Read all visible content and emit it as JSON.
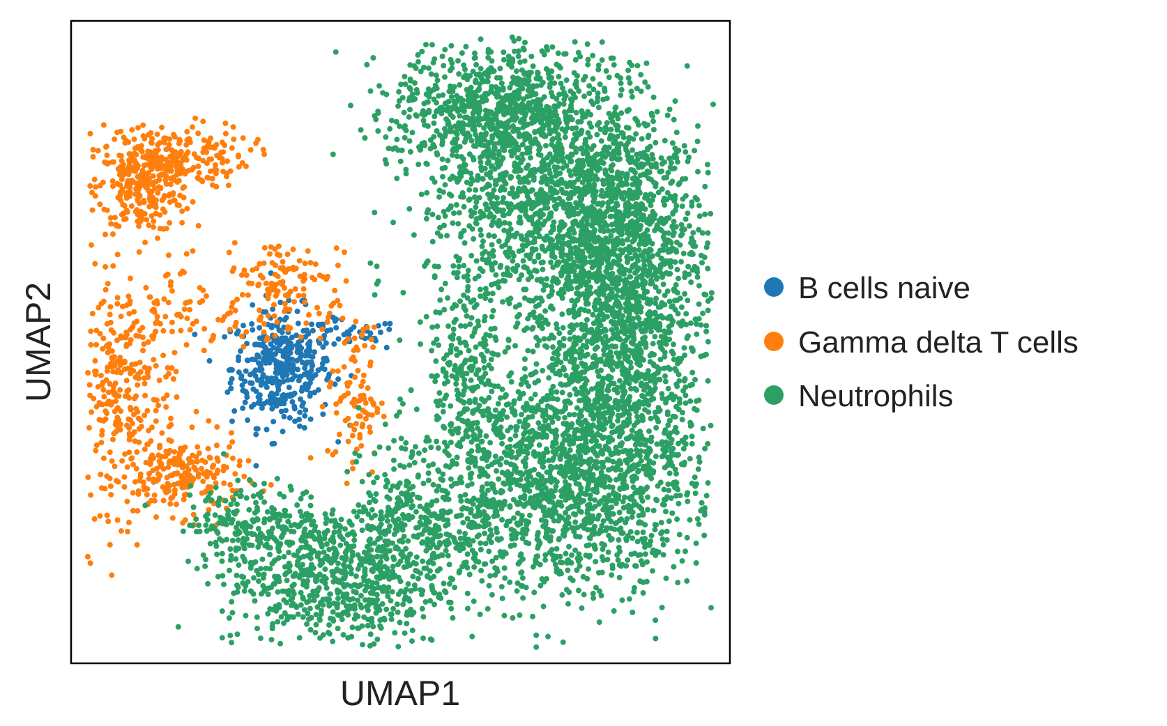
{
  "chart_data": {
    "type": "scatter",
    "xlabel": "UMAP1",
    "ylabel": "UMAP2",
    "xlim": [
      0,
      10
    ],
    "ylim": [
      0,
      10
    ],
    "grid": false,
    "ticks": false,
    "legend_placement": "right",
    "series": [
      {
        "name": "B cells naive",
        "color": "#1f77b4",
        "clusters": [
          {
            "cx": 3.2,
            "cy": 4.6,
            "sx": 0.38,
            "sy": 0.45,
            "n": 380
          },
          {
            "cx": 4.2,
            "cy": 5.1,
            "sx": 0.4,
            "sy": 0.12,
            "n": 40
          }
        ]
      },
      {
        "name": "Gamma delta T cells",
        "color": "#ff7f0e",
        "clusters": [
          {
            "cx": 1.1,
            "cy": 7.4,
            "sx": 0.35,
            "sy": 0.35,
            "n": 260
          },
          {
            "cx": 1.5,
            "cy": 7.9,
            "sx": 0.6,
            "sy": 0.25,
            "n": 200
          },
          {
            "cx": 0.8,
            "cy": 4.2,
            "sx": 0.4,
            "sy": 0.9,
            "n": 320
          },
          {
            "cx": 1.7,
            "cy": 2.9,
            "sx": 0.45,
            "sy": 0.3,
            "n": 200
          },
          {
            "cx": 3.2,
            "cy": 6.1,
            "sx": 0.45,
            "sy": 0.25,
            "n": 90
          },
          {
            "cx": 2.6,
            "cy": 5.3,
            "sx": 0.7,
            "sy": 0.25,
            "n": 70
          },
          {
            "cx": 4.3,
            "cy": 4.1,
            "sx": 0.2,
            "sy": 0.6,
            "n": 90
          },
          {
            "cx": 1.6,
            "cy": 5.8,
            "sx": 0.2,
            "sy": 0.5,
            "n": 30
          }
        ]
      },
      {
        "name": "Neutrophils",
        "color": "#2ca064",
        "clusters": [
          {
            "cx": 7.4,
            "cy": 7.2,
            "sx": 1.0,
            "sy": 1.1,
            "n": 1700
          },
          {
            "cx": 8.4,
            "cy": 5.2,
            "sx": 0.6,
            "sy": 1.5,
            "n": 1500
          },
          {
            "cx": 7.4,
            "cy": 2.9,
            "sx": 1.0,
            "sy": 0.9,
            "n": 1400
          },
          {
            "cx": 6.3,
            "cy": 8.6,
            "sx": 0.7,
            "sy": 0.45,
            "n": 600
          },
          {
            "cx": 4.0,
            "cy": 1.3,
            "sx": 0.85,
            "sy": 0.55,
            "n": 700
          },
          {
            "cx": 2.8,
            "cy": 2.2,
            "sx": 0.5,
            "sy": 0.3,
            "n": 200
          },
          {
            "cx": 5.4,
            "cy": 2.1,
            "sx": 0.6,
            "sy": 0.4,
            "n": 250
          },
          {
            "cx": 6.0,
            "cy": 4.2,
            "sx": 0.3,
            "sy": 0.8,
            "n": 200
          },
          {
            "cx": 4.9,
            "cy": 2.7,
            "sx": 0.25,
            "sy": 0.4,
            "n": 60
          }
        ]
      }
    ]
  }
}
